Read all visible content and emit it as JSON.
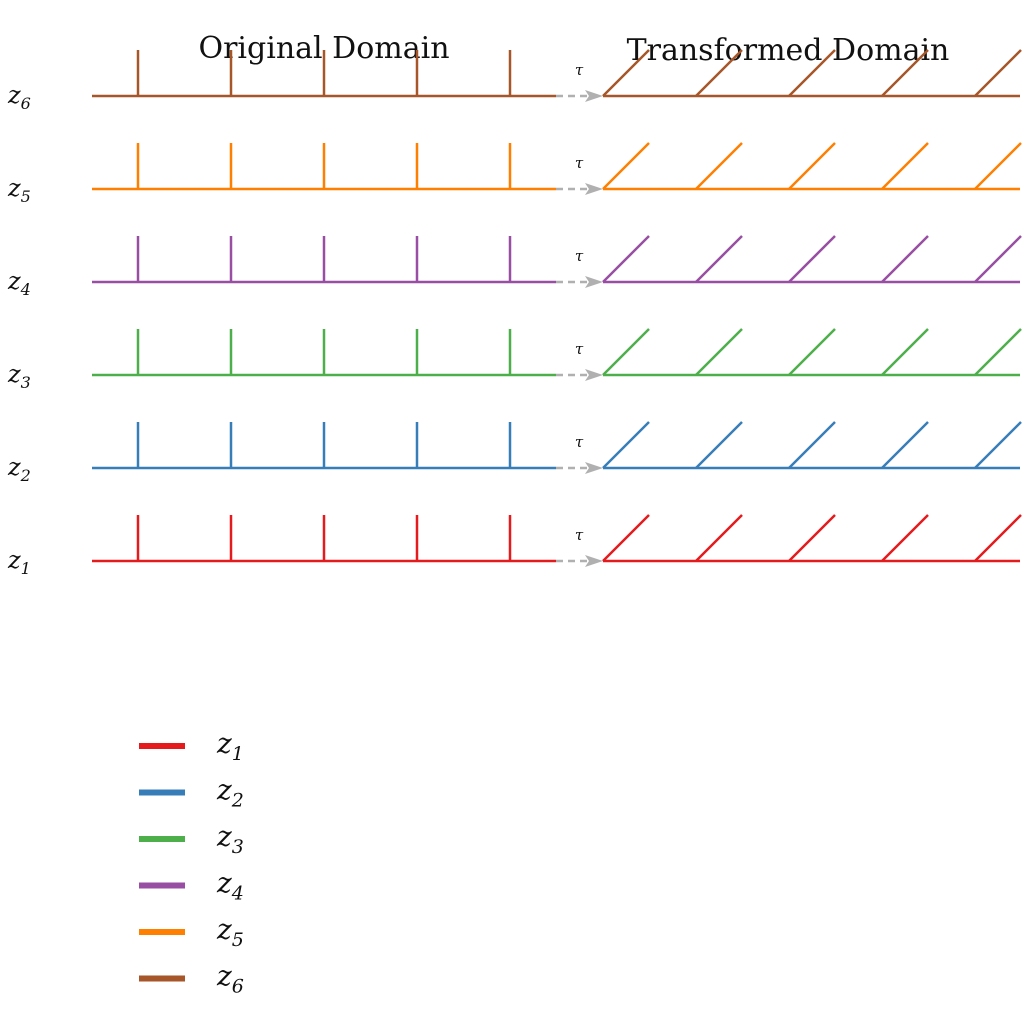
{
  "titles": {
    "original": "Original Domain",
    "transformed": "Transformed Domain"
  },
  "transform_label": "τ",
  "rows": [
    {
      "letter": "z",
      "sub": "1",
      "color": "#e41a1c"
    },
    {
      "letter": "z",
      "sub": "2",
      "color": "#377eb8"
    },
    {
      "letter": "z",
      "sub": "3",
      "color": "#4daf4a"
    },
    {
      "letter": "z",
      "sub": "4",
      "color": "#984ea3"
    },
    {
      "letter": "z",
      "sub": "5",
      "color": "#ff7f00"
    },
    {
      "letter": "z",
      "sub": "6",
      "color": "#a65628"
    }
  ],
  "legend": [
    {
      "letter": "z",
      "sub": "1",
      "color": "#e41a1c"
    },
    {
      "letter": "z",
      "sub": "2",
      "color": "#377eb8"
    },
    {
      "letter": "z",
      "sub": "3",
      "color": "#4daf4a"
    },
    {
      "letter": "z",
      "sub": "4",
      "color": "#984ea3"
    },
    {
      "letter": "z",
      "sub": "5",
      "color": "#ff7f00"
    },
    {
      "letter": "z",
      "sub": "6",
      "color": "#a65628"
    }
  ],
  "arrow_color": "#b0b0b0",
  "ticks_per_side": 5
}
